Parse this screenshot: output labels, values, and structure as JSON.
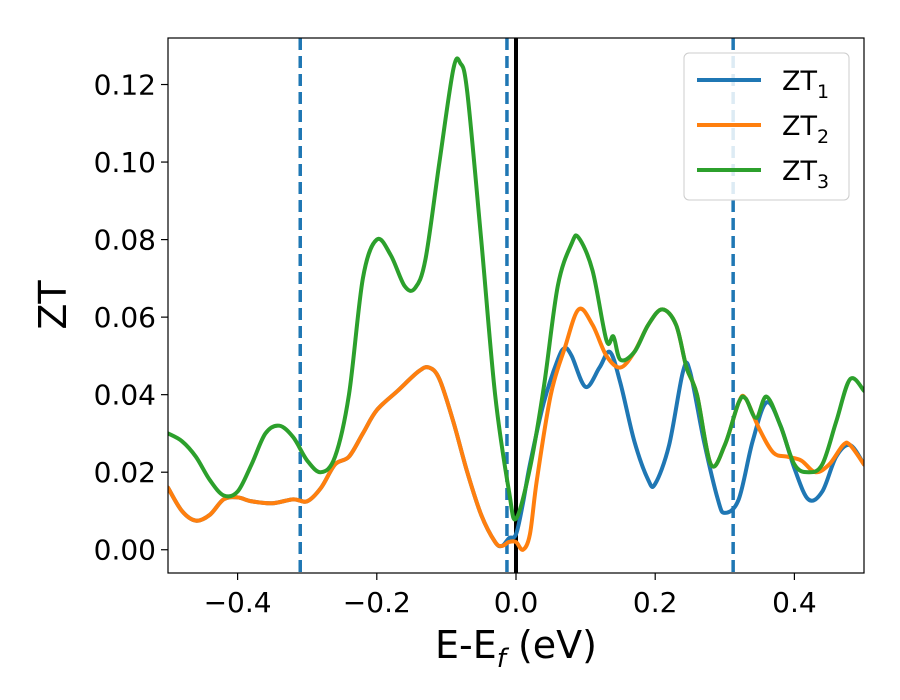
{
  "chart_data": {
    "type": "line",
    "xlabel_main": "E-E",
    "xlabel_sub": "f",
    "xlabel_unit": " (eV)",
    "ylabel": "ZT",
    "xlim": [
      -0.5,
      0.5
    ],
    "ylim": [
      -0.006,
      0.132
    ],
    "x_ticks": [
      -0.4,
      -0.2,
      0.0,
      0.2,
      0.4
    ],
    "x_tick_labels": [
      "−0.4",
      "−0.2",
      "0.0",
      "0.2",
      "0.4"
    ],
    "y_ticks": [
      0.0,
      0.02,
      0.04,
      0.06,
      0.08,
      0.1,
      0.12
    ],
    "y_tick_labels": [
      "0.00",
      "0.02",
      "0.04",
      "0.06",
      "0.08",
      "0.10",
      "0.12"
    ],
    "grid": false,
    "legend_position": "top-right",
    "vertical_lines": [
      {
        "x": -0.31,
        "style": "dashed",
        "color": "#1f77b4"
      },
      {
        "x": -0.013,
        "style": "dashed",
        "color": "#1f77b4"
      },
      {
        "x": 0.0,
        "style": "solid",
        "color": "#000000"
      },
      {
        "x": 0.312,
        "style": "dashed",
        "color": "#1f77b4"
      }
    ],
    "series": [
      {
        "name": "ZT",
        "subscript": "1",
        "color": "#1f77b4",
        "points": [
          [
            -0.5,
            0.016
          ],
          [
            -0.48,
            0.01
          ],
          [
            -0.46,
            0.0075
          ],
          [
            -0.44,
            0.009
          ],
          [
            -0.42,
            0.013
          ],
          [
            -0.4,
            0.0135
          ],
          [
            -0.38,
            0.0125
          ],
          [
            -0.35,
            0.012
          ],
          [
            -0.32,
            0.013
          ],
          [
            -0.3,
            0.0125
          ],
          [
            -0.28,
            0.016
          ],
          [
            -0.26,
            0.022
          ],
          [
            -0.24,
            0.024
          ],
          [
            -0.22,
            0.03
          ],
          [
            -0.2,
            0.036
          ],
          [
            -0.17,
            0.041
          ],
          [
            -0.14,
            0.046
          ],
          [
            -0.125,
            0.047
          ],
          [
            -0.11,
            0.044
          ],
          [
            -0.09,
            0.033
          ],
          [
            -0.07,
            0.02
          ],
          [
            -0.05,
            0.009
          ],
          [
            -0.03,
            0.002
          ],
          [
            -0.02,
            0.001
          ],
          [
            -0.01,
            0.003
          ],
          [
            0.0,
            0.004
          ],
          [
            0.01,
            0.012
          ],
          [
            0.02,
            0.022
          ],
          [
            0.04,
            0.038
          ],
          [
            0.06,
            0.049
          ],
          [
            0.07,
            0.052
          ],
          [
            0.08,
            0.05
          ],
          [
            0.1,
            0.042
          ],
          [
            0.12,
            0.047
          ],
          [
            0.135,
            0.051
          ],
          [
            0.15,
            0.043
          ],
          [
            0.17,
            0.028
          ],
          [
            0.19,
            0.018
          ],
          [
            0.2,
            0.017
          ],
          [
            0.22,
            0.027
          ],
          [
            0.24,
            0.046
          ],
          [
            0.25,
            0.046
          ],
          [
            0.27,
            0.028
          ],
          [
            0.29,
            0.013
          ],
          [
            0.3,
            0.0095
          ],
          [
            0.32,
            0.013
          ],
          [
            0.34,
            0.028
          ],
          [
            0.36,
            0.038
          ],
          [
            0.38,
            0.032
          ],
          [
            0.4,
            0.021
          ],
          [
            0.42,
            0.013
          ],
          [
            0.44,
            0.015
          ],
          [
            0.46,
            0.024
          ],
          [
            0.48,
            0.027
          ],
          [
            0.5,
            0.022
          ]
        ]
      },
      {
        "name": "ZT",
        "subscript": "2",
        "color": "#ff7f0e",
        "points": [
          [
            -0.5,
            0.016
          ],
          [
            -0.48,
            0.01
          ],
          [
            -0.46,
            0.0075
          ],
          [
            -0.44,
            0.009
          ],
          [
            -0.42,
            0.013
          ],
          [
            -0.4,
            0.0135
          ],
          [
            -0.38,
            0.0125
          ],
          [
            -0.35,
            0.012
          ],
          [
            -0.32,
            0.013
          ],
          [
            -0.3,
            0.0125
          ],
          [
            -0.28,
            0.016
          ],
          [
            -0.26,
            0.022
          ],
          [
            -0.24,
            0.024
          ],
          [
            -0.22,
            0.03
          ],
          [
            -0.2,
            0.036
          ],
          [
            -0.17,
            0.041
          ],
          [
            -0.14,
            0.046
          ],
          [
            -0.125,
            0.047
          ],
          [
            -0.11,
            0.044
          ],
          [
            -0.09,
            0.033
          ],
          [
            -0.07,
            0.02
          ],
          [
            -0.05,
            0.009
          ],
          [
            -0.03,
            0.002
          ],
          [
            -0.02,
            0.001
          ],
          [
            -0.01,
            0.002
          ],
          [
            0.0,
            0.002
          ],
          [
            0.01,
            0.0
          ],
          [
            0.02,
            0.004
          ],
          [
            0.03,
            0.018
          ],
          [
            0.05,
            0.04
          ],
          [
            0.07,
            0.052
          ],
          [
            0.09,
            0.062
          ],
          [
            0.11,
            0.058
          ],
          [
            0.13,
            0.05
          ],
          [
            0.15,
            0.047
          ],
          [
            0.17,
            0.051
          ],
          [
            0.19,
            0.058
          ],
          [
            0.21,
            0.062
          ],
          [
            0.23,
            0.058
          ],
          [
            0.245,
            0.047
          ],
          [
            0.26,
            0.04
          ],
          [
            0.28,
            0.022
          ],
          [
            0.3,
            0.027
          ],
          [
            0.32,
            0.038
          ],
          [
            0.33,
            0.039
          ],
          [
            0.35,
            0.031
          ],
          [
            0.37,
            0.025
          ],
          [
            0.39,
            0.024
          ],
          [
            0.41,
            0.023
          ],
          [
            0.43,
            0.02
          ],
          [
            0.45,
            0.022
          ],
          [
            0.47,
            0.027
          ],
          [
            0.48,
            0.027
          ],
          [
            0.5,
            0.022
          ]
        ]
      },
      {
        "name": "ZT",
        "subscript": "3",
        "color": "#2ca02c",
        "points": [
          [
            -0.5,
            0.03
          ],
          [
            -0.48,
            0.028
          ],
          [
            -0.46,
            0.024
          ],
          [
            -0.44,
            0.018
          ],
          [
            -0.42,
            0.014
          ],
          [
            -0.4,
            0.015
          ],
          [
            -0.38,
            0.022
          ],
          [
            -0.36,
            0.03
          ],
          [
            -0.34,
            0.032
          ],
          [
            -0.32,
            0.029
          ],
          [
            -0.3,
            0.023
          ],
          [
            -0.28,
            0.02
          ],
          [
            -0.26,
            0.024
          ],
          [
            -0.24,
            0.04
          ],
          [
            -0.22,
            0.07
          ],
          [
            -0.2,
            0.08
          ],
          [
            -0.18,
            0.076
          ],
          [
            -0.16,
            0.068
          ],
          [
            -0.145,
            0.0675
          ],
          [
            -0.13,
            0.075
          ],
          [
            -0.11,
            0.1
          ],
          [
            -0.09,
            0.124
          ],
          [
            -0.08,
            0.1255
          ],
          [
            -0.07,
            0.118
          ],
          [
            -0.05,
            0.08
          ],
          [
            -0.03,
            0.04
          ],
          [
            -0.01,
            0.015
          ],
          [
            0.0,
            0.008
          ],
          [
            0.02,
            0.021
          ],
          [
            0.04,
            0.042
          ],
          [
            0.06,
            0.068
          ],
          [
            0.08,
            0.079
          ],
          [
            0.09,
            0.0805
          ],
          [
            0.11,
            0.072
          ],
          [
            0.13,
            0.054
          ],
          [
            0.14,
            0.055
          ],
          [
            0.15,
            0.049
          ],
          [
            0.17,
            0.051
          ],
          [
            0.19,
            0.058
          ],
          [
            0.21,
            0.062
          ],
          [
            0.23,
            0.058
          ],
          [
            0.245,
            0.047
          ],
          [
            0.26,
            0.04
          ],
          [
            0.28,
            0.022
          ],
          [
            0.3,
            0.027
          ],
          [
            0.32,
            0.038
          ],
          [
            0.33,
            0.039
          ],
          [
            0.345,
            0.034
          ],
          [
            0.36,
            0.0395
          ],
          [
            0.38,
            0.032
          ],
          [
            0.4,
            0.022
          ],
          [
            0.42,
            0.02
          ],
          [
            0.44,
            0.022
          ],
          [
            0.46,
            0.033
          ],
          [
            0.48,
            0.044
          ],
          [
            0.5,
            0.041
          ]
        ]
      }
    ]
  }
}
